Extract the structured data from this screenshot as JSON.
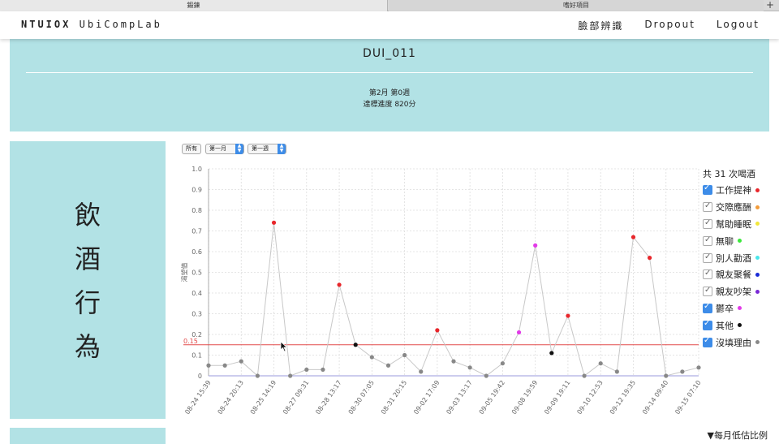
{
  "browser": {
    "tabs": [
      "鍛鍊",
      "嗜好項目"
    ],
    "new_tab": "+"
  },
  "navbar": {
    "brand_bold": "NTUIOX",
    "brand_rest": "UbiCompLab",
    "links": [
      "臉部辨識",
      "Dropout",
      "Logout"
    ]
  },
  "banner": {
    "user_id": "DUI_011",
    "period": "第2月 第0週",
    "score": "達標進度 820分"
  },
  "section": {
    "title_chars": [
      "飲",
      "酒",
      "行",
      "為"
    ]
  },
  "filters": {
    "all": "所有",
    "month": "第一月",
    "week": "第一週"
  },
  "legend": {
    "total": "共 31 次喝酒",
    "items": [
      {
        "label": "工作提神",
        "checked": true,
        "color": "#e8262b"
      },
      {
        "label": "交際應酬",
        "checked": false,
        "color": "#f39c3a"
      },
      {
        "label": "幫助睡眠",
        "checked": false,
        "color": "#f1e63a"
      },
      {
        "label": "無聊",
        "checked": false,
        "color": "#3be83b"
      },
      {
        "label": "別人勸酒",
        "checked": false,
        "color": "#4ae6ea"
      },
      {
        "label": "親友聚餐",
        "checked": false,
        "color": "#1a2bd6"
      },
      {
        "label": "親友吵架",
        "checked": false,
        "color": "#7a2ad6"
      },
      {
        "label": "鬱卒",
        "checked": true,
        "color": "#e23ae8"
      },
      {
        "label": "其他",
        "checked": true,
        "color": "#111111"
      },
      {
        "label": "沒填理由",
        "checked": true,
        "color": "#888888"
      }
    ]
  },
  "footnote": "▼每月低估比例",
  "chart_data": {
    "type": "line",
    "title": "",
    "xlabel": "",
    "ylabel": "渴望值",
    "ylim": [
      0,
      1.0
    ],
    "yticks": [
      "0",
      "0.1",
      "0.2",
      "0.3",
      "0.4",
      "0.5",
      "0.6",
      "0.7",
      "0.8",
      "0.9",
      "1.0"
    ],
    "threshold": {
      "value": 0.15,
      "label": "0.15",
      "color": "#e24b4b"
    },
    "xtick_labels": [
      "08-24 15:39",
      "08-24 20:13",
      "08-25 14:19",
      "08-27 09:31",
      "08-28 13:17",
      "08-30 07:05",
      "08-31 20:15",
      "09-02 17:09",
      "09-03 13:17",
      "09-05 19:42",
      "09-08 19:59",
      "09-09 19:11",
      "09-10 12:53",
      "09-12 19:35",
      "09-14 09:40",
      "09-15 07:10"
    ],
    "points": [
      {
        "y": 0.05,
        "color": "#888888"
      },
      {
        "y": 0.05,
        "color": "#888888"
      },
      {
        "y": 0.07,
        "color": "#888888"
      },
      {
        "y": 0.0,
        "color": "#888888"
      },
      {
        "y": 0.74,
        "color": "#e8262b"
      },
      {
        "y": 0.0,
        "color": "#888888"
      },
      {
        "y": 0.03,
        "color": "#888888"
      },
      {
        "y": 0.03,
        "color": "#888888"
      },
      {
        "y": 0.44,
        "color": "#e8262b"
      },
      {
        "y": 0.15,
        "color": "#111111"
      },
      {
        "y": 0.09,
        "color": "#888888"
      },
      {
        "y": 0.05,
        "color": "#888888"
      },
      {
        "y": 0.1,
        "color": "#888888"
      },
      {
        "y": 0.02,
        "color": "#888888"
      },
      {
        "y": 0.22,
        "color": "#e8262b"
      },
      {
        "y": 0.07,
        "color": "#888888"
      },
      {
        "y": 0.04,
        "color": "#888888"
      },
      {
        "y": 0.0,
        "color": "#888888"
      },
      {
        "y": 0.06,
        "color": "#888888"
      },
      {
        "y": 0.21,
        "color": "#e23ae8"
      },
      {
        "y": 0.63,
        "color": "#e23ae8"
      },
      {
        "y": 0.11,
        "color": "#111111"
      },
      {
        "y": 0.29,
        "color": "#e8262b"
      },
      {
        "y": 0.0,
        "color": "#888888"
      },
      {
        "y": 0.06,
        "color": "#888888"
      },
      {
        "y": 0.02,
        "color": "#888888"
      },
      {
        "y": 0.67,
        "color": "#e8262b"
      },
      {
        "y": 0.57,
        "color": "#e8262b"
      },
      {
        "y": 0.0,
        "color": "#888888"
      },
      {
        "y": 0.02,
        "color": "#888888"
      },
      {
        "y": 0.04,
        "color": "#888888"
      }
    ]
  }
}
